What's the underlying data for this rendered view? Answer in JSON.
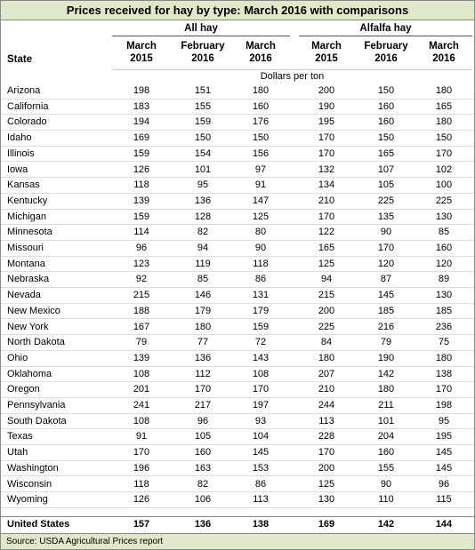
{
  "title": "Prices received for hay by type: March 2016 with comparisons",
  "groups": [
    "All hay",
    "Alfalfa hay"
  ],
  "state_header": "State",
  "columns": [
    "March 2015",
    "February 2016",
    "March 2016",
    "March 2015",
    "February 2016",
    "March 2016"
  ],
  "unit": "Dollars per ton",
  "rows": [
    [
      "Arizona",
      198,
      151,
      180,
      200,
      150,
      180
    ],
    [
      "California",
      183,
      155,
      160,
      190,
      160,
      165
    ],
    [
      "Colorado",
      194,
      159,
      176,
      195,
      160,
      180
    ],
    [
      "Idaho",
      169,
      150,
      150,
      170,
      150,
      150
    ],
    [
      "Illinois",
      159,
      154,
      156,
      170,
      165,
      170
    ],
    [
      "Iowa",
      126,
      101,
      97,
      132,
      107,
      102
    ],
    [
      "Kansas",
      118,
      95,
      91,
      134,
      105,
      100
    ],
    [
      "Kentucky",
      139,
      136,
      147,
      210,
      225,
      225
    ],
    [
      "Michigan",
      159,
      128,
      125,
      170,
      135,
      130
    ],
    [
      "Minnesota",
      114,
      82,
      80,
      122,
      90,
      85
    ],
    [
      "Missouri",
      96,
      94,
      90,
      165,
      170,
      160
    ],
    [
      "Montana",
      123,
      119,
      118,
      125,
      120,
      120
    ],
    [
      "Nebraska",
      92,
      85,
      86,
      94,
      87,
      89
    ],
    [
      "Nevada",
      215,
      146,
      131,
      215,
      145,
      130
    ],
    [
      "New Mexico",
      188,
      179,
      179,
      200,
      185,
      185
    ],
    [
      "New York",
      167,
      180,
      159,
      225,
      216,
      236
    ],
    [
      "North Dakota",
      79,
      77,
      72,
      84,
      79,
      75
    ],
    [
      "Ohio",
      139,
      136,
      143,
      180,
      190,
      180
    ],
    [
      "Oklahoma",
      108,
      112,
      108,
      207,
      142,
      138
    ],
    [
      "Oregon",
      201,
      170,
      170,
      210,
      180,
      170
    ],
    [
      "Pennsylvania",
      241,
      217,
      197,
      244,
      211,
      198
    ],
    [
      "South Dakota",
      108,
      96,
      93,
      113,
      101,
      95
    ],
    [
      "Texas",
      91,
      105,
      104,
      228,
      204,
      195
    ],
    [
      "Utah",
      170,
      160,
      145,
      170,
      160,
      145
    ],
    [
      "Washington",
      196,
      163,
      153,
      200,
      155,
      145
    ],
    [
      "Wisconsin",
      118,
      82,
      86,
      125,
      90,
      96
    ],
    [
      "Wyoming",
      126,
      106,
      113,
      130,
      110,
      115
    ]
  ],
  "total": [
    "United States",
    157,
    136,
    138,
    169,
    142,
    144
  ],
  "source": "Source: USDA Agricultural Prices report"
}
